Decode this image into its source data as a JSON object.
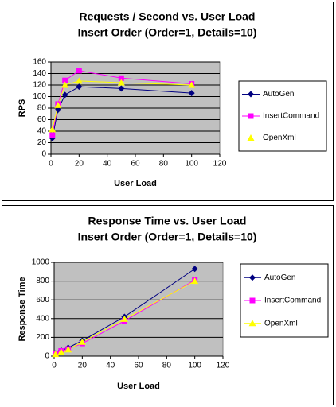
{
  "chart_data": [
    {
      "type": "line",
      "title": "Requests / Second  vs.  User Load",
      "subtitle": "Insert Order (Order=1, Details=10)",
      "x_label": "User Load",
      "y_label": "RPS",
      "x": [
        1,
        5,
        10,
        20,
        50,
        100
      ],
      "xlim": [
        0,
        120
      ],
      "xticks": [
        0,
        20,
        40,
        60,
        80,
        100,
        120
      ],
      "ylim": [
        0,
        160
      ],
      "yticks": [
        0,
        20,
        40,
        60,
        80,
        100,
        120,
        140,
        160
      ],
      "grid": true,
      "legend": "right",
      "series": [
        {
          "name": "AutoGen",
          "color": "#000080",
          "marker": "diamond",
          "values": [
            28,
            77,
            103,
            117,
            114,
            106
          ]
        },
        {
          "name": "InsertCommand",
          "color": "#ff00ff",
          "marker": "square",
          "values": [
            33,
            87,
            128,
            145,
            132,
            122
          ]
        },
        {
          "name": "OpenXml",
          "color": "#ffff00",
          "marker": "triangle",
          "values": [
            43,
            85,
            120,
            127,
            124,
            120
          ]
        }
      ]
    },
    {
      "type": "line",
      "title": "Response Time  vs.  User Load",
      "subtitle": "Insert Order (Order=1, Details=10)",
      "x_label": "User Load",
      "y_label": "Response Time",
      "x": [
        1,
        5,
        10,
        20,
        50,
        100
      ],
      "xlim": [
        0,
        120
      ],
      "xticks": [
        0,
        20,
        40,
        60,
        80,
        100,
        120
      ],
      "ylim": [
        0,
        1000
      ],
      "yticks": [
        0,
        200,
        400,
        600,
        800,
        1000
      ],
      "grid": true,
      "legend": "right",
      "series": [
        {
          "name": "AutoGen",
          "color": "#000080",
          "marker": "diamond",
          "values": [
            30,
            60,
            90,
            165,
            420,
            930
          ]
        },
        {
          "name": "InsertCommand",
          "color": "#ff00ff",
          "marker": "square",
          "values": [
            30,
            55,
            75,
            135,
            375,
            810
          ]
        },
        {
          "name": "OpenXml",
          "color": "#ffff00",
          "marker": "triangle",
          "values": [
            20,
            45,
            70,
            150,
            395,
            800
          ]
        }
      ]
    }
  ]
}
